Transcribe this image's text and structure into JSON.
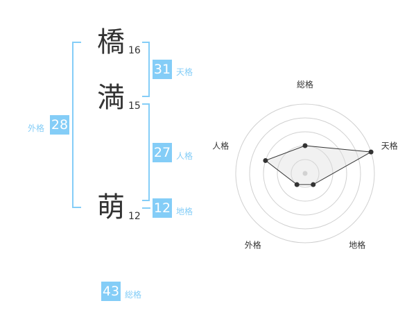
{
  "characters": [
    {
      "char": "橋",
      "strokes": "16"
    },
    {
      "char": "満",
      "strokes": "15"
    },
    {
      "char": "萌",
      "strokes": "12"
    }
  ],
  "fortunes": {
    "tenkaku": {
      "label": "天格",
      "value": "31"
    },
    "jinkaku": {
      "label": "人格",
      "value": "27"
    },
    "chikaku": {
      "label": "地格",
      "value": "12"
    },
    "gaikaku": {
      "label": "外格",
      "value": "28"
    },
    "soukaku": {
      "label": "総格",
      "value": "43"
    }
  },
  "colors": {
    "accent": "#84cdf7",
    "text": "#333333"
  },
  "chart_data": {
    "type": "radar",
    "axes": [
      "総格",
      "天格",
      "地格",
      "外格",
      "人格"
    ],
    "values": [
      2,
      5,
      1,
      1,
      3
    ],
    "range": [
      0,
      5
    ],
    "rings": 5
  }
}
